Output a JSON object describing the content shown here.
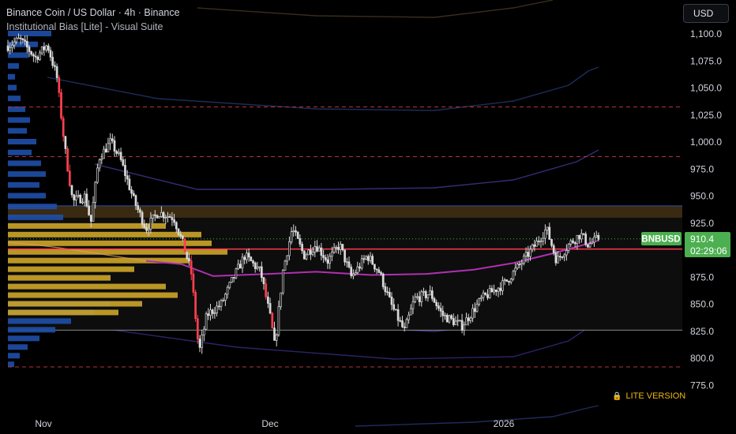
{
  "header": {
    "title": "Binance Coin / US Dollar · 4h · Binance",
    "subtitle": "Institutional Bias [Lite] - Visual Suite"
  },
  "currency_button": "USD",
  "lite_badge": {
    "icon": "lock-icon",
    "label": "LITE VERSION"
  },
  "price_tag": {
    "symbol": "BNBUSD",
    "price": "910.4",
    "countdown": "02:29:06"
  },
  "colors": {
    "background": "#000000",
    "up_candle": "#d9d9d9",
    "down_candle": "#d9d9d9",
    "profile_blue": "#1f4fa8",
    "profile_gold": "#c9a227",
    "vwap": "#b030b0",
    "band": "#3a2a78",
    "dashed_level": "#b8323d",
    "red_line": "#ff3b4e",
    "price_tag": "#4caf50",
    "lite": "#f0b90b"
  },
  "chart_data": {
    "type": "candlestick",
    "title": "Binance Coin / US Dollar · 4h · Binance",
    "subtitle": "Institutional Bias [Lite] - Visual Suite",
    "y_axis": {
      "range": [
        765,
        1112
      ],
      "ticks": [
        "1,100.0",
        "1,075.0",
        "1,050.0",
        "1,025.0",
        "1,000.0",
        "975.0",
        "950.0",
        "925.0",
        "900.0",
        "875.0",
        "850.0",
        "825.0",
        "800.0",
        "775.0"
      ],
      "tick_values": [
        1100,
        1075,
        1050,
        1025,
        1000,
        975,
        950,
        925,
        900,
        875,
        850,
        825,
        800,
        775
      ]
    },
    "x_axis": {
      "labels": [
        "Nov",
        "Dec",
        "2026"
      ]
    },
    "last_price": 910.4,
    "red_level": 901,
    "dashed_levels": [
      1032.5,
      986.5,
      792
    ],
    "value_area_box": {
      "top": 941,
      "bottom": 826
    },
    "supply_zone": {
      "top": 941,
      "bottom": 930
    },
    "anchors": [
      {
        "x": 0,
        "p": 1085
      },
      {
        "x": 25,
        "p": 1095
      },
      {
        "x": 45,
        "p": 1078
      },
      {
        "x": 60,
        "p": 1090
      },
      {
        "x": 72,
        "p": 1060
      },
      {
        "x": 82,
        "p": 995
      },
      {
        "x": 92,
        "p": 945
      },
      {
        "x": 108,
        "p": 950
      },
      {
        "x": 115,
        "p": 925
      },
      {
        "x": 125,
        "p": 985
      },
      {
        "x": 140,
        "p": 1000
      },
      {
        "x": 152,
        "p": 985
      },
      {
        "x": 170,
        "p": 945
      },
      {
        "x": 185,
        "p": 920
      },
      {
        "x": 200,
        "p": 935
      },
      {
        "x": 220,
        "p": 930
      },
      {
        "x": 232,
        "p": 905
      },
      {
        "x": 242,
        "p": 880
      },
      {
        "x": 252,
        "p": 805
      },
      {
        "x": 262,
        "p": 840
      },
      {
        "x": 280,
        "p": 850
      },
      {
        "x": 296,
        "p": 875
      },
      {
        "x": 310,
        "p": 895
      },
      {
        "x": 330,
        "p": 880
      },
      {
        "x": 343,
        "p": 835
      },
      {
        "x": 348,
        "p": 810
      },
      {
        "x": 358,
        "p": 880
      },
      {
        "x": 370,
        "p": 920
      },
      {
        "x": 385,
        "p": 895
      },
      {
        "x": 400,
        "p": 905
      },
      {
        "x": 415,
        "p": 890
      },
      {
        "x": 430,
        "p": 905
      },
      {
        "x": 445,
        "p": 875
      },
      {
        "x": 465,
        "p": 895
      },
      {
        "x": 480,
        "p": 880
      },
      {
        "x": 495,
        "p": 850
      },
      {
        "x": 512,
        "p": 825
      },
      {
        "x": 525,
        "p": 855
      },
      {
        "x": 545,
        "p": 860
      },
      {
        "x": 560,
        "p": 840
      },
      {
        "x": 585,
        "p": 830
      },
      {
        "x": 610,
        "p": 855
      },
      {
        "x": 640,
        "p": 870
      },
      {
        "x": 662,
        "p": 890
      },
      {
        "x": 678,
        "p": 905
      },
      {
        "x": 692,
        "p": 920
      },
      {
        "x": 705,
        "p": 890
      },
      {
        "x": 720,
        "p": 905
      },
      {
        "x": 735,
        "p": 915
      },
      {
        "x": 745,
        "p": 905
      },
      {
        "x": 758,
        "p": 911
      }
    ],
    "profile_blue": [
      {
        "p": 1100,
        "w": 55
      },
      {
        "p": 1090,
        "w": 38
      },
      {
        "p": 1080,
        "w": 26
      },
      {
        "p": 1070,
        "w": 14
      },
      {
        "p": 1060,
        "w": 9
      },
      {
        "p": 1050,
        "w": 11
      },
      {
        "p": 1040,
        "w": 16
      },
      {
        "p": 1030,
        "w": 22
      },
      {
        "p": 1020,
        "w": 28
      },
      {
        "p": 1010,
        "w": 24
      },
      {
        "p": 1000,
        "w": 36
      },
      {
        "p": 990,
        "w": 30
      },
      {
        "p": 980,
        "w": 42
      },
      {
        "p": 970,
        "w": 48
      },
      {
        "p": 960,
        "w": 40
      },
      {
        "p": 950,
        "w": 48
      },
      {
        "p": 940,
        "w": 62
      },
      {
        "p": 930,
        "w": 70
      },
      {
        "p": 850,
        "w": 130
      },
      {
        "p": 842,
        "w": 110
      },
      {
        "p": 834,
        "w": 80
      },
      {
        "p": 826,
        "w": 60
      },
      {
        "p": 818,
        "w": 40
      },
      {
        "p": 810,
        "w": 25
      },
      {
        "p": 802,
        "w": 15
      },
      {
        "p": 794,
        "w": 8
      }
    ],
    "profile_gold": [
      {
        "p": 922,
        "w": 200
      },
      {
        "p": 914,
        "w": 245
      },
      {
        "p": 906,
        "w": 258
      },
      {
        "p": 898,
        "w": 278
      },
      {
        "p": 890,
        "w": 230
      },
      {
        "p": 882,
        "w": 160
      },
      {
        "p": 874,
        "w": 130
      },
      {
        "p": 866,
        "w": 200
      },
      {
        "p": 858,
        "w": 215
      },
      {
        "p": 850,
        "w": 170
      },
      {
        "p": 842,
        "w": 140
      }
    ],
    "vwap": [
      {
        "x": 185,
        "p": 890
      },
      {
        "x": 230,
        "p": 887
      },
      {
        "x": 270,
        "p": 876
      },
      {
        "x": 340,
        "p": 878
      },
      {
        "x": 400,
        "p": 880
      },
      {
        "x": 470,
        "p": 877
      },
      {
        "x": 540,
        "p": 878
      },
      {
        "x": 600,
        "p": 882
      },
      {
        "x": 650,
        "p": 888
      },
      {
        "x": 700,
        "p": 897
      },
      {
        "x": 740,
        "p": 905
      },
      {
        "x": 758,
        "p": 909
      }
    ]
  }
}
